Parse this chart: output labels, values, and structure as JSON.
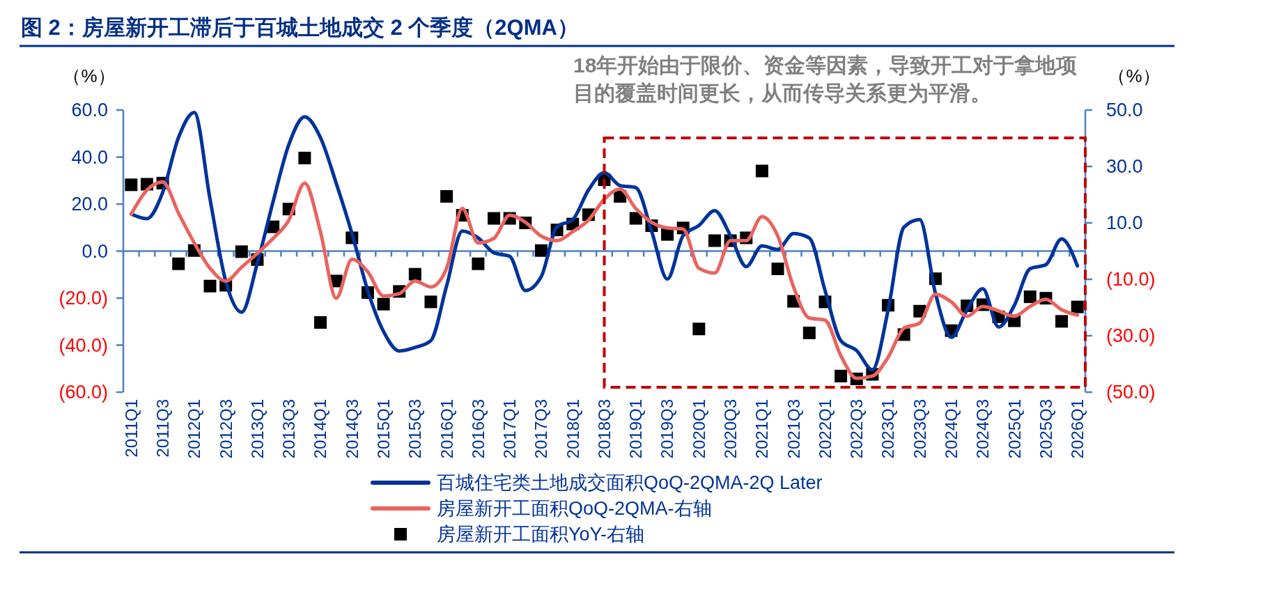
{
  "chart_data": {
    "type": "line",
    "title": "图 2：房屋新开工滞后于百城土地成交 2 个季度（2QMA）",
    "ylabel": "（%）",
    "y2label": "（%）",
    "annotations": [
      "18年开始由于限价、资金等因素，导致开工对于拿地项目的覆盖时间更长，从而传导关系更为平滑。"
    ],
    "categories": [
      "2011Q1",
      null,
      "2011Q3",
      null,
      "2012Q1",
      null,
      "2012Q3",
      null,
      "2013Q1",
      null,
      "2013Q3",
      null,
      "2014Q1",
      null,
      "2014Q3",
      null,
      "2015Q1",
      null,
      "2015Q3",
      null,
      "2016Q1",
      null,
      "2016Q3",
      null,
      "2017Q1",
      null,
      "2017Q3",
      null,
      "2018Q1",
      null,
      "2018Q3",
      null,
      "2019Q1",
      null,
      "2019Q3",
      null,
      "2020Q1",
      null,
      "2020Q3",
      null,
      "2021Q1",
      null,
      "2021Q3",
      null,
      "2022Q1",
      null,
      "2022Q3",
      null,
      "2023Q1",
      null,
      "2023Q3",
      null,
      "2024Q1",
      null,
      "2024Q3",
      null,
      "2025Q1",
      null,
      "2025Q3",
      null,
      "2026Q1"
    ],
    "series": [
      {
        "name": "百城住宅类土地成交面积QoQ-2QMA-2Q Later",
        "color": "#00339a",
        "values": [
          15.8,
          13.8,
          25.0,
          48.3,
          59.0,
          22.1,
          -12.9,
          -26.0,
          -5.1,
          21.1,
          45.4,
          57.1,
          48.3,
          28.9,
          7.5,
          -16.8,
          -34.2,
          -42.5,
          -41.0,
          -38.1,
          -14.8,
          8.5,
          5.6,
          -0.7,
          -2.2,
          -16.8,
          -10.9,
          10.4,
          13.4,
          26.0,
          33.3,
          27.9,
          27.0,
          8.5,
          -11.9,
          6.6,
          10.9,
          17.2,
          6.6,
          -6.6,
          2.2,
          0.7,
          7.5,
          5.6,
          -16.8,
          -38.1,
          -42.3,
          -50.5,
          -25.0,
          10.2,
          13.4,
          -18.0,
          -36.7,
          -25.0,
          -16.0,
          -32.3,
          -23.1,
          -7.5,
          -5.8,
          5.2,
          -6.3
        ]
      },
      {
        "name": "房屋新开工面积QoQ-2QMA-右轴",
        "axis": "y2",
        "color": "#e8645f",
        "values": [
          13.1,
          21.6,
          24.5,
          13.5,
          2.9,
          -6.1,
          -10.6,
          -5.7,
          -0.8,
          4.5,
          11.0,
          24.1,
          6.9,
          -16.7,
          -2.9,
          -7.3,
          -15.9,
          -15.1,
          -10.6,
          -12.7,
          -6.1,
          15.1,
          2.9,
          4.5,
          12.7,
          10.2,
          5.3,
          3.7,
          6.9,
          11.0,
          18.4,
          22.0,
          15.1,
          10.2,
          8.2,
          7.8,
          -6.1,
          -7.8,
          3.7,
          3.7,
          12.2,
          5.3,
          -12.7,
          -23.7,
          -24.5,
          -37.1,
          -45.1,
          -44.3,
          -37.6,
          -27.3,
          -25.5,
          -15.3,
          -18.0,
          -23.1,
          -19.6,
          -21.2,
          -23.1,
          -19.6,
          -17.1,
          -20.8,
          -22.7
        ]
      },
      {
        "name": "房屋新开工面积YoY-右轴",
        "type": "scatter",
        "axis": "y2",
        "marker": "square",
        "color": "#000000",
        "values": [
          23.5,
          23.7,
          24.1,
          -4.5,
          0.2,
          -12.4,
          -12.1,
          -0.2,
          -3.0,
          8.6,
          14.9,
          33.0,
          -25.3,
          -10.6,
          4.7,
          -14.7,
          -18.8,
          -14.3,
          -8.2,
          -18.0,
          19.4,
          12.7,
          -4.5,
          11.6,
          11.6,
          10.0,
          0.2,
          7.5,
          9.6,
          12.9,
          25.3,
          19.4,
          11.6,
          9.0,
          5.9,
          8.2,
          -27.6,
          3.7,
          3.7,
          4.7,
          28.4,
          -6.3,
          -17.8,
          -29.0,
          -18.0,
          -44.3,
          -45.3,
          -43.7,
          -19.2,
          -29.6,
          -21.3,
          -9.8,
          -28.2,
          -19.4,
          -19.0,
          -23.3,
          -24.7,
          -16.2,
          -16.7,
          -24.9,
          -19.8
        ]
      }
    ],
    "ylim": [
      -60,
      60
    ],
    "yticks": [
      {
        "value": -60,
        "label": "(60.0)"
      },
      {
        "value": -40,
        "label": "(40.0)"
      },
      {
        "value": -20,
        "label": "(20.0)"
      },
      {
        "value": 0,
        "label": "0.0"
      },
      {
        "value": 20,
        "label": "20.0"
      },
      {
        "value": 40,
        "label": "40.0"
      },
      {
        "value": 60,
        "label": "60.0"
      }
    ],
    "y2lim": [
      -50,
      50
    ],
    "y2ticks": [
      {
        "value": -50,
        "label": "(50.0)"
      },
      {
        "value": -30,
        "label": "(30.0)"
      },
      {
        "value": -10,
        "label": "(10.0)"
      },
      {
        "value": 10,
        "label": "10.0"
      },
      {
        "value": 30,
        "label": "30.0"
      },
      {
        "value": 50,
        "label": "50.0"
      }
    ],
    "ref_lines": [
      {
        "axis": "y",
        "value": 0,
        "color": "#4f81bd"
      }
    ],
    "grid": false,
    "legend": "bottom"
  }
}
